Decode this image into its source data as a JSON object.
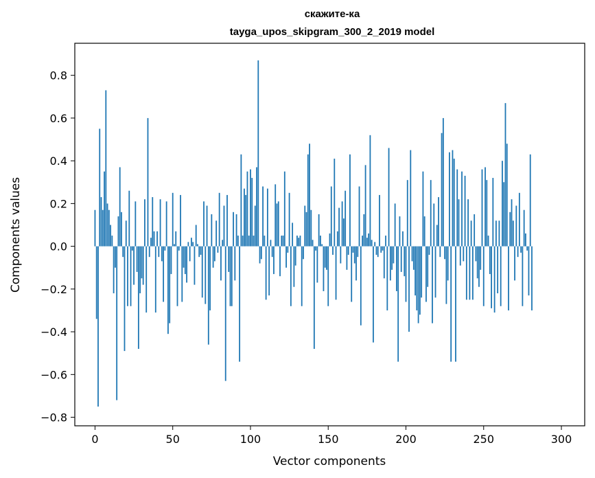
{
  "chart_data": {
    "type": "bar",
    "title": [
      "скажите-ка",
      "tayga_upos_skipgram_300_2_2019 model"
    ],
    "xlabel": "Vector components",
    "ylabel": "Components values",
    "xlim": [
      -13,
      315
    ],
    "ylim": [
      -0.84,
      0.95
    ],
    "xticks": [
      0,
      50,
      100,
      150,
      200,
      250,
      300
    ],
    "xtick_labels": [
      "0",
      "50",
      "100",
      "150",
      "200",
      "250",
      "300"
    ],
    "yticks": [
      -0.8,
      -0.6,
      -0.4,
      -0.2,
      0.0,
      0.2,
      0.4,
      0.6,
      0.8
    ],
    "ytick_labels": [
      "−0.8",
      "−0.6",
      "−0.4",
      "−0.2",
      "0.0",
      "0.2",
      "0.4",
      "0.6",
      "0.8"
    ],
    "bar_color": "#1f77b4",
    "values": [
      0.17,
      -0.34,
      -0.75,
      0.55,
      0.23,
      0.17,
      0.35,
      0.73,
      0.2,
      0.17,
      0.1,
      0.05,
      -0.22,
      -0.1,
      -0.72,
      0.14,
      0.37,
      0.16,
      -0.05,
      -0.49,
      0.12,
      -0.28,
      0.26,
      -0.28,
      -0.02,
      -0.18,
      0.21,
      -0.12,
      -0.48,
      -0.22,
      -0.15,
      -0.18,
      0.22,
      -0.31,
      0.6,
      -0.05,
      0.04,
      0.23,
      0.07,
      -0.31,
      0.07,
      -0.05,
      0.22,
      -0.07,
      -0.26,
      -0.02,
      0.21,
      -0.41,
      -0.36,
      -0.13,
      0.25,
      0.01,
      0.07,
      -0.28,
      -0.02,
      0.24,
      -0.26,
      -0.1,
      -0.13,
      -0.17,
      0.02,
      -0.07,
      0.04,
      0.02,
      -0.18,
      0.1,
      0.01,
      -0.05,
      -0.04,
      -0.24,
      0.21,
      -0.27,
      0.19,
      -0.46,
      -0.3,
      0.15,
      -0.1,
      -0.07,
      0.12,
      -0.03,
      0.25,
      -0.16,
      0.03,
      0.19,
      -0.63,
      0.24,
      -0.12,
      -0.28,
      -0.28,
      0.16,
      -0.16,
      0.15,
      0.05,
      -0.54,
      0.43,
      0.05,
      0.27,
      0.24,
      0.35,
      0.05,
      0.36,
      0.32,
      0.05,
      0.19,
      0.37,
      0.87,
      -0.08,
      -0.06,
      0.28,
      0.05,
      -0.25,
      0.27,
      -0.23,
      0.03,
      -0.05,
      -0.13,
      0.29,
      0.2,
      0.21,
      -0.14,
      0.05,
      0.05,
      0.35,
      -0.1,
      -0.03,
      0.25,
      -0.28,
      0.11,
      -0.19,
      -0.09,
      0.05,
      0.04,
      0.05,
      -0.28,
      -0.06,
      0.19,
      0.16,
      0.43,
      0.48,
      0.17,
      0.03,
      -0.48,
      -0.02,
      -0.17,
      0.15,
      0.05,
      0.01,
      -0.21,
      -0.1,
      -0.11,
      -0.28,
      0.06,
      0.28,
      -0.04,
      0.41,
      -0.25,
      0.07,
      0.18,
      -0.08,
      0.21,
      0.13,
      0.26,
      -0.11,
      -0.04,
      0.43,
      -0.26,
      -0.03,
      -0.08,
      -0.16,
      -0.05,
      0.28,
      -0.37,
      0.05,
      0.15,
      0.38,
      0.04,
      0.06,
      0.52,
      0.03,
      -0.45,
      0.02,
      -0.04,
      -0.05,
      0.24,
      -0.03,
      -0.02,
      -0.15,
      0.05,
      -0.3,
      0.46,
      -0.16,
      -0.11,
      -0.08,
      0.2,
      -0.21,
      -0.54,
      0.14,
      -0.12,
      0.07,
      -0.14,
      -0.26,
      0.31,
      -0.4,
      0.45,
      -0.07,
      -0.11,
      -0.23,
      -0.3,
      -0.36,
      -0.32,
      -0.24,
      0.35,
      0.14,
      -0.26,
      -0.19,
      -0.04,
      0.31,
      -0.36,
      0.2,
      -0.24,
      0.1,
      0.23,
      -0.05,
      0.53,
      0.6,
      -0.06,
      -0.27,
      -0.16,
      0.44,
      -0.54,
      0.45,
      0.41,
      -0.54,
      0.36,
      0.22,
      -0.09,
      0.35,
      -0.07,
      0.33,
      -0.25,
      0.22,
      -0.25,
      0.12,
      -0.25,
      0.15,
      -0.07,
      -0.15,
      -0.19,
      -0.11,
      0.36,
      -0.28,
      0.37,
      0.31,
      0.05,
      -0.13,
      -0.29,
      0.32,
      -0.31,
      0.12,
      -0.22,
      0.12,
      -0.28,
      0.4,
      0.3,
      0.67,
      0.48,
      -0.3,
      0.16,
      0.22,
      0.12,
      -0.16,
      0.19,
      -0.05,
      0.25,
      -0.03,
      -0.28,
      0.17,
      0.06,
      -0.02,
      -0.23,
      0.43,
      -0.3
    ]
  }
}
